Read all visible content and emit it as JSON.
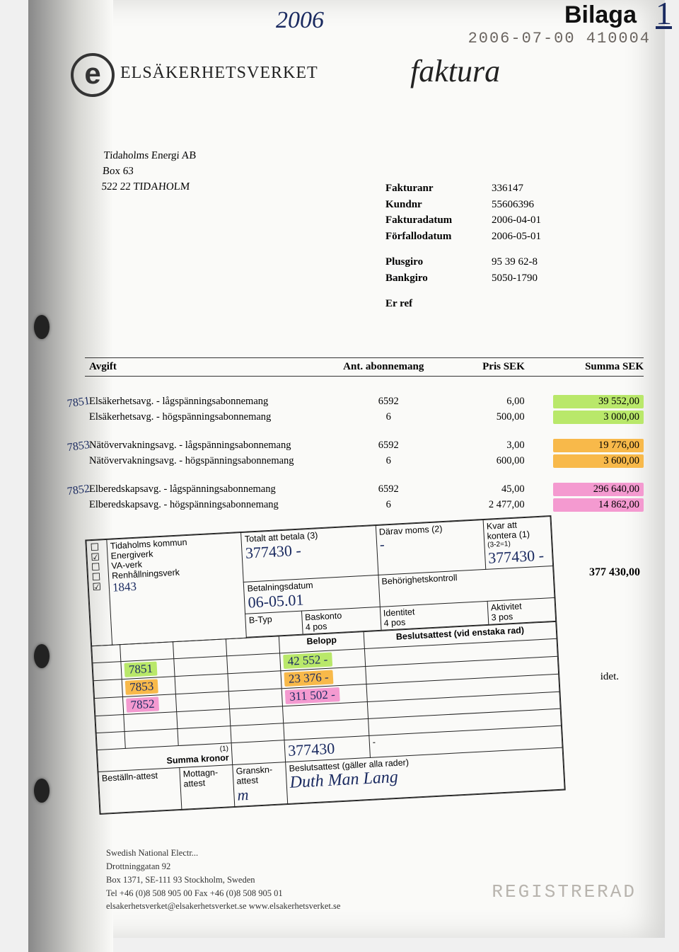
{
  "colors": {
    "hl_green": "#b9e86a",
    "hl_orange": "#f8b94a",
    "hl_pink": "#f49ad0",
    "ink": "#1a2a60",
    "text": "#222222",
    "page": "#fafaf8"
  },
  "header": {
    "handwritten_year": "2006",
    "bilaga_label": "Bilaga",
    "bilaga_number": "1",
    "stamp_number": "2006-07-00  410004",
    "agency_name": "ELSÄKERHETSVERKET",
    "logo_letter": "e",
    "document_title": "faktura"
  },
  "recipient": {
    "name": "Tidaholms Energi AB",
    "line2": "Box 63",
    "line3": "522 22 TIDAHOLM"
  },
  "meta": {
    "rows": [
      {
        "label": "Fakturanr",
        "value": "336147"
      },
      {
        "label": "Kundnr",
        "value": "55606396"
      },
      {
        "label": "Fakturadatum",
        "value": "2006-04-01"
      },
      {
        "label": "Förfallodatum",
        "value": "2006-05-01"
      }
    ],
    "rows2": [
      {
        "label": "Plusgiro",
        "value": "95 39 62-8"
      },
      {
        "label": "Bankgiro",
        "value": "5050-1790"
      }
    ],
    "erref_label": "Er ref",
    "erref_value": ""
  },
  "columns": {
    "avgift": "Avgift",
    "ant": "Ant. abonnemang",
    "pris": "Pris SEK",
    "summa": "Summa SEK"
  },
  "line_groups": [
    {
      "margin_note": "7851",
      "rows": [
        {
          "desc": "Elsäkerhetsavg. - lågspänningsabonnemang",
          "ant": "6592",
          "pris": "6,00",
          "sum": "39 552,00",
          "hl": "hl-green"
        },
        {
          "desc": "Elsäkerhetsavg. - högspänningsabonnemang",
          "ant": "6",
          "pris": "500,00",
          "sum": "3 000,00",
          "hl": "hl-green"
        }
      ]
    },
    {
      "margin_note": "7853",
      "rows": [
        {
          "desc": "Nätövervakningsavg. - lågspänningsabonnemang",
          "ant": "6592",
          "pris": "3,00",
          "sum": "19 776,00",
          "hl": "hl-orange"
        },
        {
          "desc": "Nätövervakningsavg. - högspänningsabonnemang",
          "ant": "6",
          "pris": "600,00",
          "sum": "3 600,00",
          "hl": "hl-orange"
        }
      ]
    },
    {
      "margin_note": "7852",
      "rows": [
        {
          "desc": "Elberedskapsavg. - lågspänningsabonnemang",
          "ant": "6592",
          "pris": "45,00",
          "sum": "296 640,00",
          "hl": "hl-pink"
        },
        {
          "desc": "Elberedskapsavg. - högspänningsabonnemang",
          "ant": "6",
          "pris": "2 477,00",
          "sum": "14 862,00",
          "hl": "hl-pink"
        }
      ]
    }
  ],
  "slip": {
    "org_rows": [
      {
        "label": "Tidaholms kommun",
        "checked": false
      },
      {
        "label": "Energiverk",
        "checked": false
      },
      {
        "label": "VA-verk",
        "checked": false
      },
      {
        "label": "Renhållningsverk",
        "checked": false
      }
    ],
    "org_handwritten": "1843",
    "org_check_index": 1,
    "totalt_label": "Totalt att betala (3)",
    "totalt_value": "377430 -",
    "moms_label": "Därav moms (2)",
    "moms_value": "-",
    "kvar_label": "Kvar att kontera (1)",
    "kvar_sub": "(3-2=1)",
    "kvar_value": "377430 -",
    "betalningsdatum_label": "Betalningsdatum",
    "betalningsdatum_value": "06-05.01",
    "behorighet_label": "Behörighetskontroll",
    "col_btyp": "B-Typ",
    "col_baskonto": "Baskonto\n4 pos",
    "col_identitet": "Identitet\n4 pos",
    "col_aktivitet": "Aktivitet\n3 pos",
    "col_belopp": "Belopp",
    "col_beslut": "Beslutsattest (vid enstaka rad)",
    "entries": [
      {
        "baskonto": "7851",
        "belopp": "42 552 -",
        "hl_bas": "hl-green",
        "hl_bel": "hl-green"
      },
      {
        "baskonto": "7853",
        "belopp": "23 376 -",
        "hl_bas": "hl-orange",
        "hl_bel": "hl-orange"
      },
      {
        "baskonto": "7852",
        "belopp": "311 502 -",
        "hl_bas": "hl-pink",
        "hl_bel": "hl-pink"
      }
    ],
    "summa_note": "(1)",
    "summa_label": "Summa kronor",
    "summa_value": "377430",
    "bestalln_label": "Beställn-attest",
    "mottagn_label": "Mottagn-attest",
    "granskn_label": "Granskn-attest",
    "granskn_value": "m",
    "beslut_label": "Beslutsattest (gäller alla rader)",
    "signature": "Duth Man Lang"
  },
  "total_right": "377 430,00",
  "idet_text": "idet.",
  "footer": {
    "line1": "Swedish National Electr...",
    "line2": "Drottninggatan 92",
    "line3": "Box 1371, SE-111 93 Stockholm, Sweden",
    "line4": "Tel +46 (0)8 508 905 00   Fax +46 (0)8 508 905 01",
    "line5": "elsakerhetsverket@elsakerhetsverket.se   www.elsakerhetsverket.se"
  },
  "reg_stamp": "REGISTRERAD"
}
